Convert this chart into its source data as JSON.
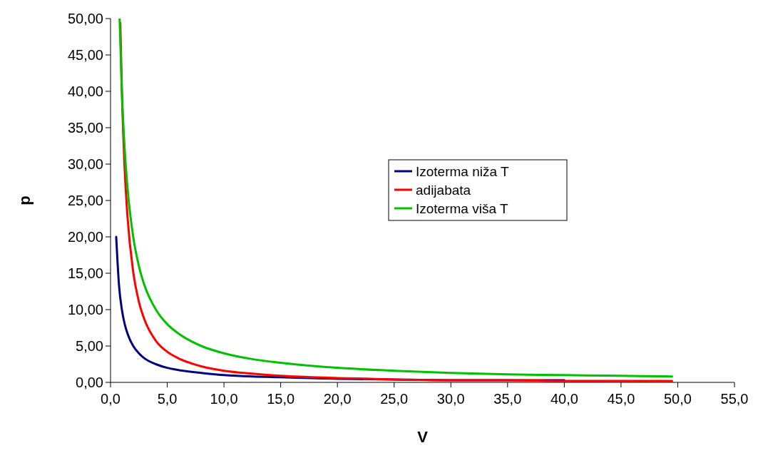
{
  "chart_data": {
    "type": "line",
    "xlabel": "V",
    "ylabel": "p",
    "xlim": [
      0,
      55
    ],
    "ylim": [
      0,
      50
    ],
    "xticks": [
      {
        "value": 0,
        "label": "0,0"
      },
      {
        "value": 5,
        "label": "5,0"
      },
      {
        "value": 10,
        "label": "10,0"
      },
      {
        "value": 15,
        "label": "15,0"
      },
      {
        "value": 20,
        "label": "20,0"
      },
      {
        "value": 25,
        "label": "25,0"
      },
      {
        "value": 30,
        "label": "30,0"
      },
      {
        "value": 35,
        "label": "35,0"
      },
      {
        "value": 40,
        "label": "40,0"
      },
      {
        "value": 45,
        "label": "45,0"
      },
      {
        "value": 50,
        "label": "50,0"
      },
      {
        "value": 55,
        "label": "55,0"
      }
    ],
    "yticks": [
      {
        "value": 0,
        "label": "0,00"
      },
      {
        "value": 5,
        "label": "5,00"
      },
      {
        "value": 10,
        "label": "10,00"
      },
      {
        "value": 15,
        "label": "15,00"
      },
      {
        "value": 20,
        "label": "20,00"
      },
      {
        "value": 25,
        "label": "25,00"
      },
      {
        "value": 30,
        "label": "30,00"
      },
      {
        "value": 35,
        "label": "35,00"
      },
      {
        "value": 40,
        "label": "40,00"
      },
      {
        "value": 45,
        "label": "45,00"
      },
      {
        "value": 50,
        "label": "50,00"
      }
    ],
    "grid": false,
    "legend": "center",
    "marker": "none",
    "line_style": "solid",
    "series": [
      {
        "name": "Izoterma niža T",
        "color": "#000080",
        "x": [
          0.5,
          0.75,
          1,
          1.25,
          1.5,
          2,
          2.5,
          3,
          4,
          5,
          6,
          8,
          10,
          12.5,
          15,
          20,
          25,
          30,
          35,
          40
        ],
        "values": [
          20,
          13.3,
          10,
          8,
          6.7,
          5,
          4,
          3.3,
          2.5,
          2,
          1.7,
          1.3,
          1,
          0.8,
          0.7,
          0.5,
          0.4,
          0.3,
          0.3,
          0.3
        ]
      },
      {
        "name": "adijabata",
        "color": "#ff0000",
        "x": [
          0.86,
          1,
          1.25,
          1.5,
          2,
          2.5,
          3,
          4,
          5,
          6,
          8,
          10,
          12.5,
          15,
          20,
          25,
          30,
          35,
          40,
          45,
          49.5
        ],
        "values": [
          49.4,
          40,
          29.3,
          22.7,
          15.2,
          11.1,
          8.6,
          5.7,
          4.2,
          3.3,
          2.2,
          1.6,
          1.2,
          0.9,
          0.6,
          0.4,
          0.3,
          0.3,
          0.2,
          0.2,
          0.2
        ]
      },
      {
        "name": "Izoterma viša T",
        "color": "#00c000",
        "x": [
          0.8,
          1,
          1.25,
          1.5,
          2,
          2.5,
          3,
          4,
          5,
          6,
          8,
          10,
          12.5,
          15,
          20,
          25,
          30,
          35,
          40,
          45,
          49.5
        ],
        "values": [
          50,
          40,
          32,
          26.7,
          20,
          16,
          13.3,
          10,
          8,
          6.7,
          5,
          4,
          3.2,
          2.7,
          2,
          1.6,
          1.3,
          1.1,
          1,
          0.9,
          0.8
        ]
      }
    ]
  }
}
